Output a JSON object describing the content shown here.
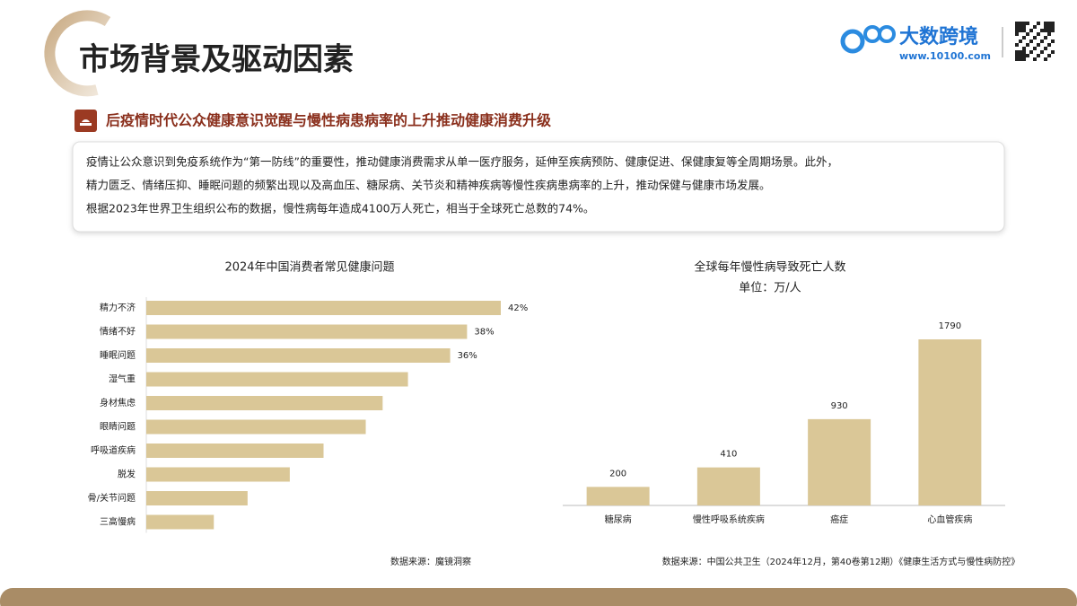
{
  "header": {
    "title": "市场背景及驱动因素",
    "brand": "大数跨境",
    "url": "www.10100.com"
  },
  "section": {
    "heading": "后疫情时代公众健康意识觉醒与慢性病患病率的上升推动健康消费升级",
    "lines": [
      "疫情让公众意识到免疫系统作为“第一防线”的重要性，推动健康消费需求从单一医疗服务，延伸至疾病预防、健康促进、保健康复等全周期场景。此外，",
      "精力匮乏、情绪压抑、睡眠问题的频繁出现以及高血压、糖尿病、关节炎和精神疾病等慢性疾病患病率的上升，推动保健与健康市场发展。",
      "根据2023年世界卫生组织公布的数据，慢性病每年造成4100万人死亡，相当于全球死亡总数的74%。"
    ]
  },
  "chart_data": [
    {
      "type": "bar",
      "orientation": "horizontal",
      "title": "2024年中国消费者常见健康问题",
      "categories": [
        "精力不济",
        "情绪不好",
        "睡眠问题",
        "湿气重",
        "身材焦虑",
        "眼睛问题",
        "呼吸道疾病",
        "脱发",
        "骨/关节问题",
        "三高慢病"
      ],
      "values": [
        42,
        38,
        36,
        31,
        28,
        26,
        21,
        17,
        12,
        8
      ],
      "value_labels": [
        "42%",
        "38%",
        "36%",
        null,
        null,
        null,
        null,
        null,
        null,
        null
      ],
      "color": "#dac797",
      "source": "数据来源：魔镜洞察"
    },
    {
      "type": "bar",
      "orientation": "vertical",
      "title": "全球每年慢性病导致死亡人数",
      "subtitle": "单位：万/人",
      "categories": [
        "糖尿病",
        "慢性呼吸系统疾病",
        "癌症",
        "心血管疾病"
      ],
      "values": [
        200,
        410,
        930,
        1790
      ],
      "color": "#dac797",
      "source": "数据来源：中国公共卫生（2024年12月，第40卷第12期）《健康生活方式与慢性病防控》"
    }
  ]
}
